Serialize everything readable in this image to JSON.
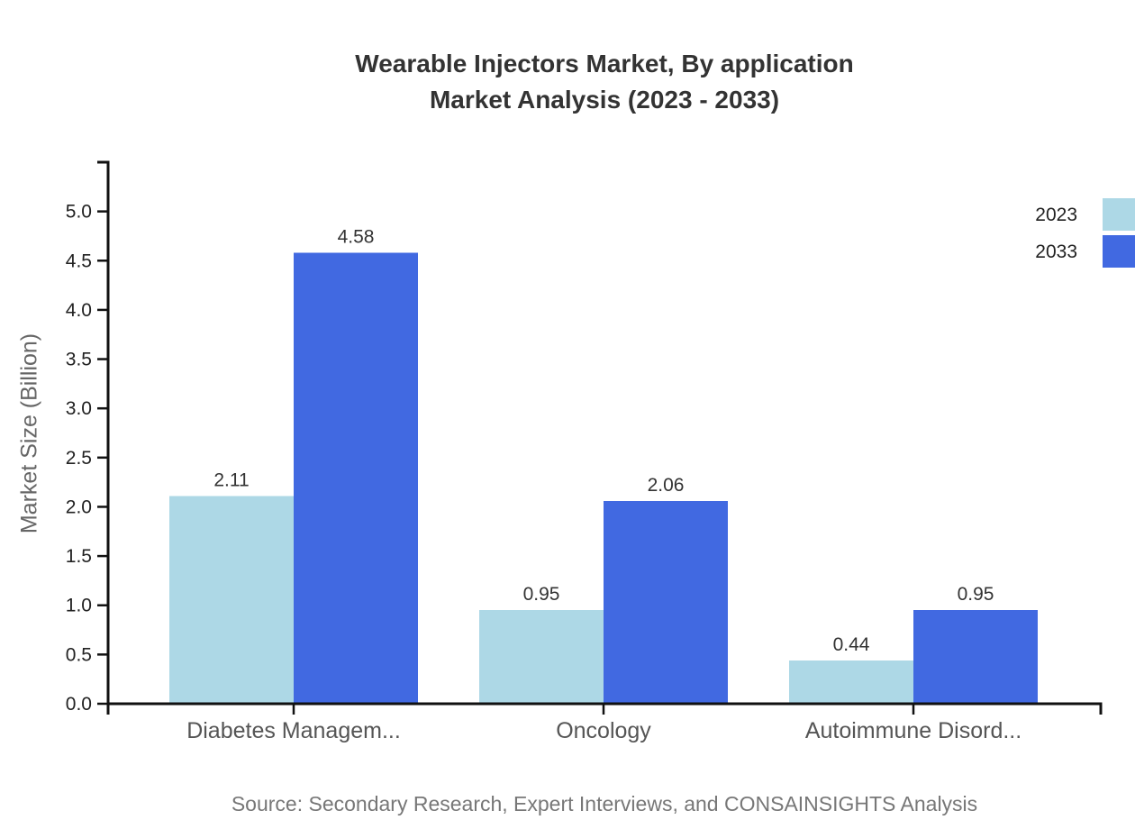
{
  "header": {
    "title_line1": "Wearable Injectors Market, By application",
    "title_line2": "Market Analysis (2023 - 2033)"
  },
  "chart_data": {
    "type": "bar",
    "title": "Wearable Injectors Market, By application Market Analysis (2023 - 2033)",
    "categories": [
      "Diabetes Managem...",
      "Oncology",
      "Autoimmune Disord..."
    ],
    "series": [
      {
        "name": "2023",
        "color": "#ADD8E6",
        "values": [
          2.11,
          0.95,
          0.44
        ]
      },
      {
        "name": "2033",
        "color": "#4169E1",
        "values": [
          4.58,
          2.06,
          0.95
        ]
      }
    ],
    "xlabel": "",
    "ylabel": "Market Size (Billion)",
    "ylim": [
      0,
      5.5
    ],
    "yticks": [
      0,
      0.5,
      1,
      1.5,
      2,
      2.5,
      3,
      3.5,
      4,
      4.5,
      5
    ],
    "tick_label_decimals": 1,
    "value_label_decimals": 2,
    "grid": false,
    "legend_position": "top-right",
    "value_labels_shown": true
  },
  "footer": {
    "source_note": "Source: Secondary Research, Expert Interviews, and CONSAINSIGHTS Analysis"
  },
  "colors": {
    "background": "#ffffff",
    "title": "#333333",
    "axis": "#111111",
    "tick_label": "#222222",
    "category_label": "#555555",
    "ylabel": "#666666",
    "value_label": "#333333",
    "legend_label": "#222222",
    "source": "#777777"
  }
}
